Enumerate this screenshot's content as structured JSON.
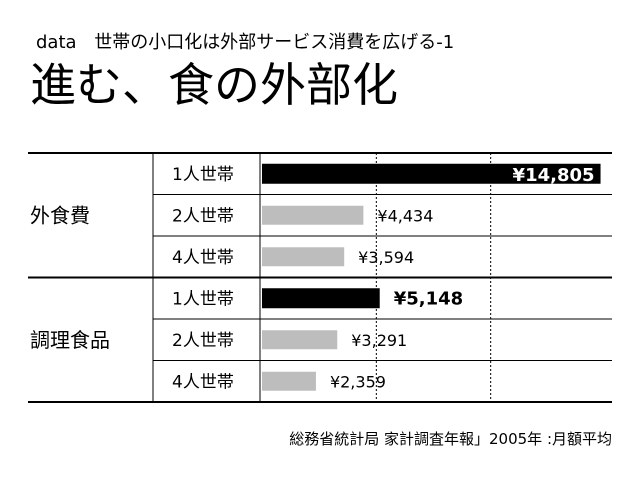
{
  "header": {
    "tag": "data",
    "subtitle": "世帯の小口化は外部サービス消費を広げる-1"
  },
  "title": "進む、食の外部化",
  "source": "総務省統計局 家計調査年報」2005年 :月額平均",
  "colors": {
    "highlight": "#000000",
    "normal": "#bdbdbd",
    "line": "#000000",
    "grid": "#000000"
  },
  "chart_data": {
    "type": "bar",
    "orientation": "horizontal",
    "currency_symbol": "¥",
    "groups": [
      {
        "name": "外食費",
        "rows": [
          {
            "label": "1人世帯",
            "value": 14805,
            "value_label": "¥14,805",
            "highlight": true,
            "label_inside": true
          },
          {
            "label": "2人世帯",
            "value": 4434,
            "value_label": "¥4,434",
            "highlight": false,
            "label_inside": false
          },
          {
            "label": "4人世帯",
            "value": 3594,
            "value_label": "¥3,594",
            "highlight": false,
            "label_inside": false
          }
        ]
      },
      {
        "name": "調理食品",
        "rows": [
          {
            "label": "1人世帯",
            "value": 5148,
            "value_label": "¥5,148",
            "highlight": true,
            "label_inside": false
          },
          {
            "label": "2人世帯",
            "value": 3291,
            "value_label": "¥3,291",
            "highlight": false,
            "label_inside": false
          },
          {
            "label": "4人世帯",
            "value": 2359,
            "value_label": "¥2,359",
            "highlight": false,
            "label_inside": false
          }
        ]
      }
    ],
    "xlim": [
      0,
      15000
    ],
    "gridlines": [
      5000,
      10000
    ],
    "grid": "dotted vertical"
  }
}
